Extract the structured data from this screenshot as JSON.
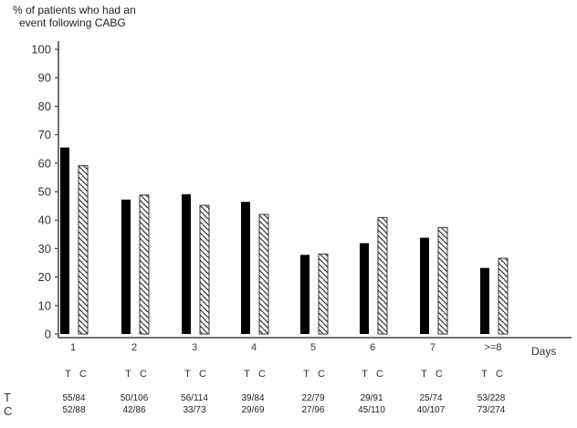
{
  "chart_data": {
    "type": "bar",
    "title": "",
    "ylabel": "% of patients who had an event following CABG",
    "ylabel_lines": [
      "% of patients who had an",
      "event following CABG"
    ],
    "xlabel": "Days",
    "ylim": [
      0,
      100
    ],
    "yticks": [
      0,
      10,
      20,
      30,
      40,
      50,
      60,
      70,
      80,
      90,
      100
    ],
    "grid": false,
    "legend": "none (T/C labels beneath each category)",
    "categories": [
      "1",
      "2",
      "3",
      "4",
      "5",
      "6",
      "7",
      ">=8"
    ],
    "series": [
      {
        "name": "T",
        "style": "solid black",
        "values": [
          65.5,
          47.2,
          49.1,
          46.4,
          27.8,
          31.9,
          33.8,
          23.2
        ]
      },
      {
        "name": "C",
        "style": "diagonal hatch",
        "values": [
          59.1,
          48.8,
          45.2,
          42.0,
          28.1,
          40.9,
          37.4,
          26.6
        ]
      }
    ],
    "table": {
      "row_labels": [
        "T",
        "C"
      ],
      "T": [
        "55/84",
        "50/106",
        "56/114",
        "39/84",
        "22/79",
        "29/91",
        "25/74",
        "53/228"
      ],
      "C": [
        "52/88",
        "42/86",
        "33/73",
        "29/69",
        "27/96",
        "45/110",
        "40/107",
        "73/274"
      ]
    }
  },
  "labels": {
    "ytitle_line1": "% of patients who had an",
    "ytitle_line2": "event following CABG",
    "xaxis_title": "Days",
    "tc_t": "T",
    "tc_c": "C",
    "row_t": "T",
    "row_c": "C"
  },
  "colors": {
    "solid_bar": "#000000",
    "hatch_line": "#333333",
    "axis": "#444444",
    "background": "#ffffff"
  }
}
